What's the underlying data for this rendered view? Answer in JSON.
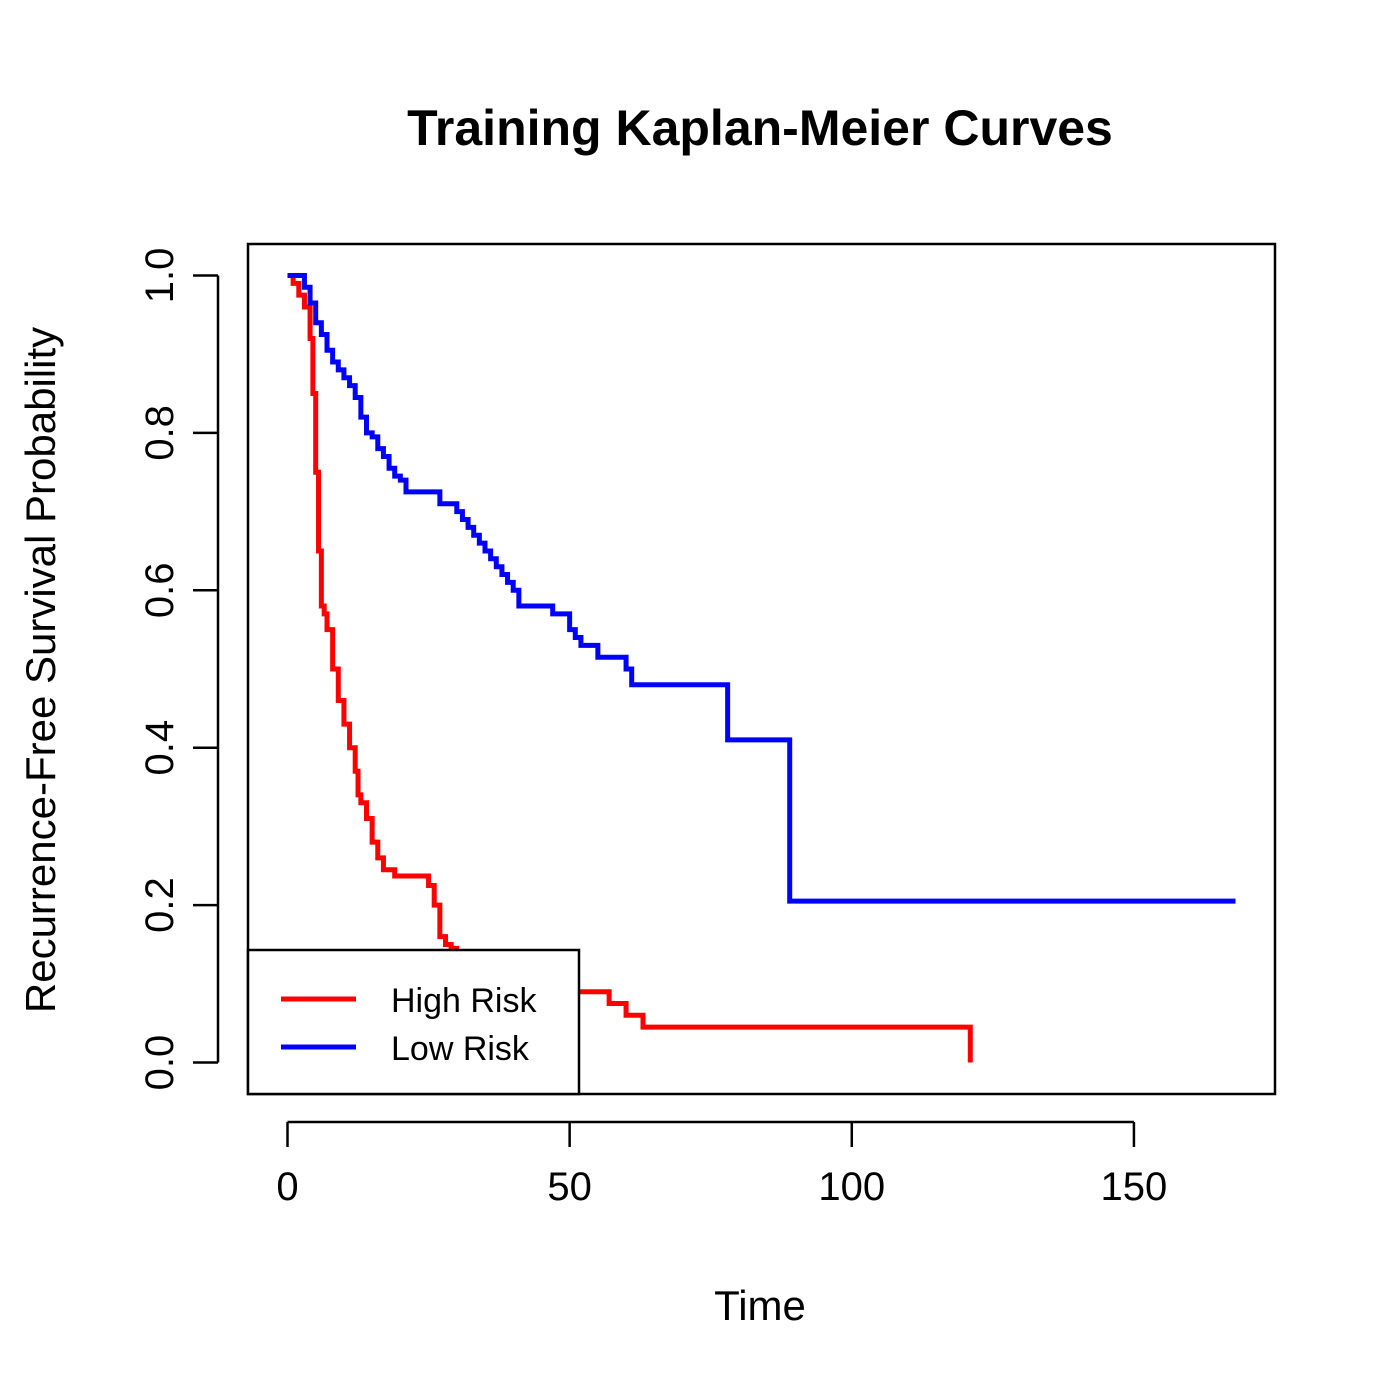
{
  "chart_data": {
    "type": "line",
    "step": true,
    "title": "Training Kaplan-Meier Curves",
    "xlabel": "Time",
    "ylabel": "Recurrence-Free Survival Probability",
    "xlim": [
      -7,
      175
    ],
    "ylim": [
      -0.04,
      1.04
    ],
    "xticks": [
      0,
      50,
      100,
      150
    ],
    "xtick_labels": [
      "0",
      "50",
      "100",
      "150"
    ],
    "yticks": [
      0,
      0.2,
      0.4,
      0.6,
      0.8,
      1.0
    ],
    "ytick_labels": [
      "0.0",
      "0.2",
      "0.4",
      "0.6",
      "0.8",
      "1.0"
    ],
    "grid": false,
    "legend": {
      "position": "bottom-left"
    },
    "series": [
      {
        "name": "High Risk",
        "color": "#ff0000",
        "x": [
          0,
          1,
          2,
          3,
          4,
          4.5,
          5,
          5.5,
          6,
          6.5,
          7,
          8,
          9,
          10,
          11,
          12,
          12.5,
          13,
          14,
          15,
          16,
          17,
          18,
          19,
          20,
          21,
          22,
          25,
          26,
          27,
          28,
          29,
          30,
          31,
          35,
          40,
          45,
          50,
          57,
          60,
          63,
          121,
          121
        ],
        "y": [
          1.0,
          0.99,
          0.975,
          0.96,
          0.92,
          0.85,
          0.75,
          0.65,
          0.58,
          0.57,
          0.55,
          0.5,
          0.46,
          0.43,
          0.4,
          0.37,
          0.34,
          0.33,
          0.31,
          0.28,
          0.26,
          0.245,
          0.245,
          0.237,
          0.237,
          0.237,
          0.237,
          0.225,
          0.2,
          0.16,
          0.15,
          0.145,
          0.14,
          0.13,
          0.12,
          0.11,
          0.1,
          0.09,
          0.075,
          0.06,
          0.045,
          0.045,
          0.0
        ]
      },
      {
        "name": "Low Risk",
        "color": "#0000ff",
        "x": [
          0,
          3,
          4,
          5,
          6,
          7,
          8,
          9,
          10,
          11,
          12,
          13,
          14,
          15,
          16,
          17,
          18,
          19,
          20,
          21,
          22,
          27,
          30,
          31,
          32,
          33,
          34,
          35,
          36,
          37,
          38,
          39,
          40,
          41,
          47,
          50,
          51,
          52,
          55,
          60,
          61,
          78,
          89,
          168
        ],
        "y": [
          1.0,
          0.985,
          0.965,
          0.94,
          0.925,
          0.905,
          0.89,
          0.88,
          0.87,
          0.86,
          0.845,
          0.82,
          0.8,
          0.795,
          0.78,
          0.77,
          0.755,
          0.745,
          0.74,
          0.725,
          0.725,
          0.71,
          0.7,
          0.69,
          0.68,
          0.67,
          0.66,
          0.65,
          0.64,
          0.63,
          0.62,
          0.61,
          0.6,
          0.58,
          0.57,
          0.55,
          0.54,
          0.53,
          0.515,
          0.5,
          0.48,
          0.41,
          0.205,
          0.205
        ]
      }
    ]
  }
}
